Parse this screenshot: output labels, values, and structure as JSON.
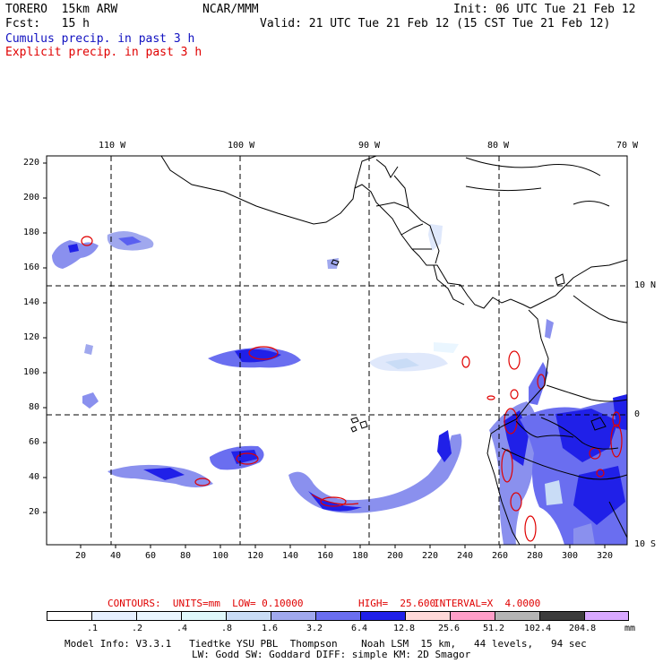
{
  "header": {
    "model": "TORERO  15km ARW",
    "org": "NCAR/MMM",
    "init": "Init: 06 UTC Tue 21 Feb 12",
    "fcst": "Fcst:   15 h",
    "valid": "Valid: 21 UTC Tue 21 Feb 12 (15 CST Tue 21 Feb 12)",
    "field1": "Cumulus precip. in past 3 h",
    "field2": "Explicit precip. in past 3 h"
  },
  "map": {
    "lon_labels": [
      "110 W",
      "100 W",
      "90 W",
      "80 W",
      "70 W"
    ],
    "lat_labels": [
      "10 N",
      "0",
      "10 S"
    ],
    "y_ticks": [
      "220",
      "200",
      "180",
      "160",
      "140",
      "120",
      "100",
      "80",
      "60",
      "40",
      "20"
    ],
    "x_ticks": [
      "20",
      "40",
      "60",
      "80",
      "100",
      "120",
      "140",
      "160",
      "180",
      "200",
      "220",
      "240",
      "260",
      "280",
      "300",
      "320"
    ]
  },
  "contours": {
    "label": "CONTOURS:  UNITS=mm  LOW= 0.10000",
    "high": "HIGH=  25.600",
    "interval": "INTERVAL=X  4.0000"
  },
  "colorbar": {
    "labels": [
      ".1",
      ".2",
      ".4",
      ".8",
      "1.6",
      "3.2",
      "6.4",
      "12.8",
      "25.6",
      "51.2",
      "102.4",
      "204.8"
    ],
    "unit": "mm",
    "colors": [
      "#ffffff",
      "#e6f0ff",
      "#eaf6ff",
      "#dff8fb",
      "#c9dcf6",
      "#a0a8ee",
      "#6a6ef0",
      "#2020e8",
      "#ffd8d8",
      "#ff9ec8",
      "#b4b4b4",
      "#3c3c3c",
      "#d8a8ff"
    ]
  },
  "footer": {
    "line1": "Model Info: V3.3.1   Tiedtke YSU PBL  Thompson    Noah LSM  15 km,   44 levels,   94 sec",
    "line2": "LW: Godd SW: Goddard DIFF: simple KM: 2D Smagor"
  }
}
